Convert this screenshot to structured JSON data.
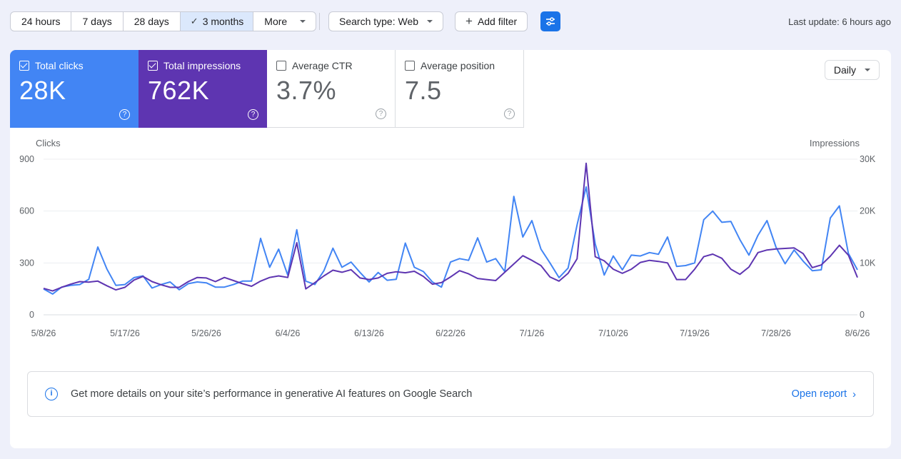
{
  "toolbar": {
    "ranges": [
      "24 hours",
      "7 days",
      "28 days",
      "3 months",
      "More"
    ],
    "active_range": "3 months",
    "search_type": "Search type: Web",
    "add_filter": "Add filter",
    "last_update": "Last update: 6 hours ago"
  },
  "metrics": [
    {
      "label": "Total clicks",
      "value": "28K",
      "selected": true,
      "color": "#4285f4"
    },
    {
      "label": "Total impressions",
      "value": "762K",
      "selected": true,
      "color": "#5e35b1"
    },
    {
      "label": "Average CTR",
      "value": "3.7%",
      "selected": false
    },
    {
      "label": "Average position",
      "value": "7.5",
      "selected": false
    }
  ],
  "granularity": "Daily",
  "chart_data": {
    "type": "line",
    "left_axis_label": "Clicks",
    "right_axis_label": "Impressions",
    "left_ticks": [
      "900",
      "600",
      "300",
      "0"
    ],
    "right_ticks": [
      "30K",
      "20K",
      "10K",
      "0"
    ],
    "ylim_left": [
      0,
      900
    ],
    "ylim_right": [
      0,
      30000
    ],
    "x_ticks": [
      "5/8/26",
      "5/17/26",
      "5/26/26",
      "6/4/26",
      "6/13/26",
      "6/22/26",
      "7/1/26",
      "7/10/26",
      "7/19/26",
      "7/28/26",
      "8/6/26"
    ],
    "grid": true,
    "series": [
      {
        "name": "Total clicks",
        "axis": "left",
        "color": "#4285f4",
        "values": [
          150,
          120,
          160,
          170,
          175,
          205,
          392,
          265,
          170,
          175,
          215,
          225,
          155,
          175,
          190,
          145,
          180,
          190,
          185,
          160,
          160,
          175,
          195,
          195,
          442,
          275,
          380,
          230,
          492,
          195,
          175,
          255,
          385,
          275,
          305,
          245,
          190,
          245,
          200,
          205,
          415,
          275,
          250,
          190,
          160,
          305,
          325,
          315,
          445,
          305,
          325,
          250,
          685,
          450,
          545,
          380,
          300,
          215,
          270,
          520,
          740,
          410,
          230,
          340,
          260,
          345,
          340,
          360,
          350,
          450,
          280,
          285,
          300,
          550,
          600,
          535,
          540,
          435,
          345,
          460,
          545,
          390,
          295,
          375,
          310,
          255,
          260,
          560,
          630,
          355,
          260
        ]
      },
      {
        "name": "Total impressions",
        "axis": "right",
        "color": "#5e35b1",
        "values": [
          5100,
          4600,
          5300,
          5900,
          6400,
          6300,
          6500,
          5600,
          4800,
          5300,
          6700,
          7400,
          6400,
          5800,
          5300,
          5300,
          6400,
          7200,
          7100,
          6400,
          7200,
          6600,
          6000,
          5500,
          6500,
          7200,
          7500,
          7200,
          13900,
          5000,
          6200,
          7500,
          8600,
          8200,
          8700,
          7100,
          6800,
          7100,
          8000,
          8300,
          8100,
          8400,
          7400,
          5900,
          6200,
          7300,
          8500,
          7900,
          7000,
          6800,
          6600,
          8200,
          9800,
          11400,
          10500,
          9500,
          7300,
          6500,
          8000,
          10800,
          29200,
          11200,
          10400,
          8800,
          8000,
          8800,
          10100,
          10500,
          10300,
          10000,
          6800,
          6800,
          8800,
          11200,
          11700,
          10900,
          8800,
          7800,
          9200,
          12000,
          12500,
          12700,
          12800,
          12900,
          11800,
          9100,
          9600,
          11300,
          13400,
          11500,
          7200
        ]
      }
    ]
  },
  "banner": {
    "text": "Get more details on your site’s performance in generative AI features on Google Search",
    "link": "Open report"
  }
}
